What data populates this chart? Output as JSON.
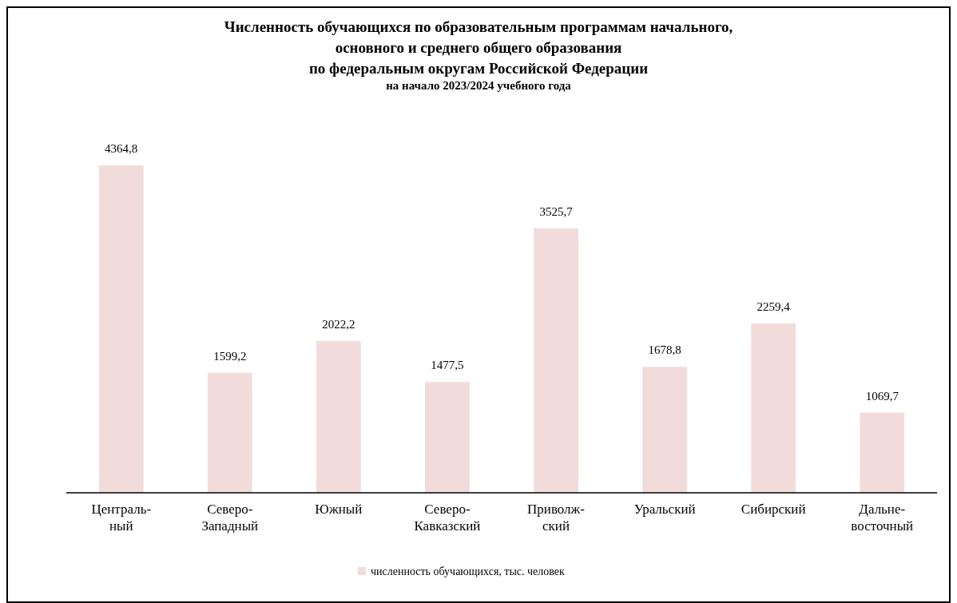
{
  "chart_data": {
    "type": "bar",
    "title": "Численность обучающихся по образовательным программам начального,\nосновного и среднего общего образования\nпо федеральным округам Российской Федерации",
    "subtitle": "на начало 2023/2024 учебного года",
    "categories": [
      "Централь-\nный",
      "Северо-\nЗападный",
      "Южный",
      "Северо-\nКавказский",
      "Приволж-\nский",
      "Уральский",
      "Сибирский",
      "Дальне-\nвосточный"
    ],
    "series": [
      {
        "name": "численность обучающихся, тыс. человек",
        "color": "#f2dcdb",
        "values": [
          4364.8,
          1599.2,
          2022.2,
          1477.5,
          3525.7,
          1678.8,
          2259.4,
          1069.7
        ],
        "value_labels": [
          "4364,8",
          "1599,2",
          "2022,2",
          "1477,5",
          "3525,7",
          "1678,8",
          "2259,4",
          "1069,7"
        ]
      }
    ],
    "legend": "bottom"
  }
}
